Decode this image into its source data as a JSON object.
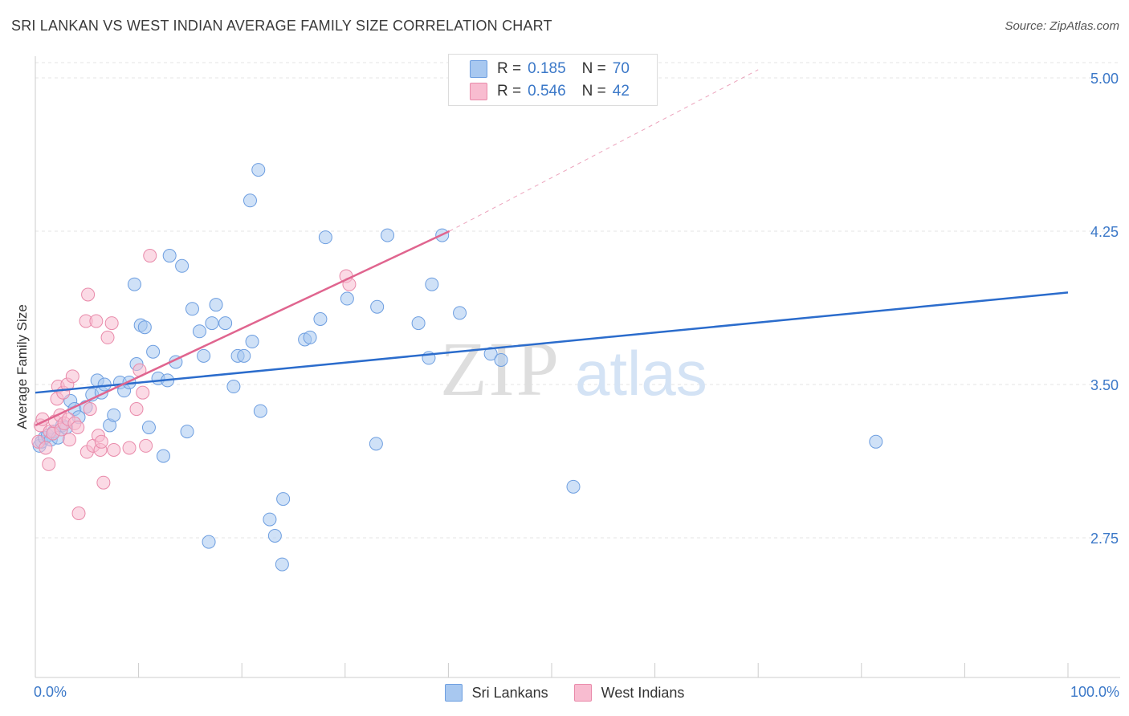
{
  "title": "SRI LANKAN VS WEST INDIAN AVERAGE FAMILY SIZE CORRELATION CHART",
  "source": "Source: ZipAtlas.com",
  "watermark": {
    "zip": "ZIP",
    "atlas": "atlas"
  },
  "colors": {
    "blue_fill": "#a8c8f0",
    "blue_stroke": "#6d9ee0",
    "blue_line": "#2b6ccc",
    "pink_fill": "#f8bcd0",
    "pink_stroke": "#e98aaa",
    "pink_line": "#e0658f",
    "grid": "#e6e6e6",
    "tick_label": "#3b78c8"
  },
  "legend": {
    "r_label": "R =",
    "n_label": "N =",
    "rows": [
      {
        "series": "Sri Lankans",
        "r": "0.185",
        "n": "70",
        "color": "#a8c8f0",
        "border": "#6d9ee0"
      },
      {
        "series": "West Indians",
        "r": "0.546",
        "n": "42",
        "color": "#f8bcd0",
        "border": "#e98aaa"
      }
    ]
  },
  "chart_data": {
    "type": "scatter",
    "title": "SRI LANKAN VS WEST INDIAN AVERAGE FAMILY SIZE CORRELATION CHART",
    "xlabel": "",
    "ylabel": "Average Family Size",
    "xlim": [
      0,
      100
    ],
    "ylim": [
      2.0,
      5.05
    ],
    "x_tick_labels": [
      "0.0%",
      "100.0%"
    ],
    "y_ticks": [
      2.75,
      3.5,
      4.25,
      5.0
    ],
    "y_tick_labels": [
      "2.75",
      "3.50",
      "4.25",
      "5.00"
    ],
    "grid": true,
    "legend_position": "top-center",
    "series": [
      {
        "name": "Sri Lankans",
        "color": "#a8c8f0",
        "trend": {
          "x": [
            0,
            100
          ],
          "y": [
            3.46,
            3.95
          ],
          "style": "solid"
        },
        "points": [
          [
            0.4,
            3.2
          ],
          [
            0.6,
            3.22
          ],
          [
            0.9,
            3.24
          ],
          [
            1.2,
            3.25
          ],
          [
            1.5,
            3.23
          ],
          [
            1.8,
            3.27
          ],
          [
            2.2,
            3.24
          ],
          [
            2.6,
            3.3
          ],
          [
            3.0,
            3.29
          ],
          [
            3.4,
            3.42
          ],
          [
            3.8,
            3.38
          ],
          [
            4.2,
            3.34
          ],
          [
            4.9,
            3.39
          ],
          [
            5.5,
            3.45
          ],
          [
            6.0,
            3.52
          ],
          [
            6.4,
            3.46
          ],
          [
            6.7,
            3.5
          ],
          [
            7.2,
            3.3
          ],
          [
            7.6,
            3.35
          ],
          [
            8.2,
            3.51
          ],
          [
            8.6,
            3.47
          ],
          [
            9.1,
            3.51
          ],
          [
            9.6,
            3.99
          ],
          [
            9.8,
            3.6
          ],
          [
            10.2,
            3.79
          ],
          [
            10.6,
            3.78
          ],
          [
            11.0,
            3.29
          ],
          [
            11.4,
            3.66
          ],
          [
            11.9,
            3.53
          ],
          [
            12.4,
            3.15
          ],
          [
            12.8,
            3.52
          ],
          [
            13.0,
            4.13
          ],
          [
            13.6,
            3.61
          ],
          [
            14.2,
            4.08
          ],
          [
            14.7,
            3.27
          ],
          [
            15.2,
            3.87
          ],
          [
            15.9,
            3.76
          ],
          [
            16.3,
            3.64
          ],
          [
            16.8,
            2.73
          ],
          [
            17.1,
            3.8
          ],
          [
            17.5,
            3.89
          ],
          [
            18.4,
            3.8
          ],
          [
            19.2,
            3.49
          ],
          [
            19.6,
            3.64
          ],
          [
            20.2,
            3.64
          ],
          [
            20.8,
            4.4
          ],
          [
            21.0,
            3.71
          ],
          [
            21.6,
            4.55
          ],
          [
            21.8,
            3.37
          ],
          [
            22.7,
            2.84
          ],
          [
            23.2,
            2.76
          ],
          [
            23.9,
            2.62
          ],
          [
            24.0,
            2.94
          ],
          [
            26.1,
            3.72
          ],
          [
            26.6,
            3.73
          ],
          [
            27.6,
            3.82
          ],
          [
            28.1,
            4.22
          ],
          [
            30.2,
            3.92
          ],
          [
            33.1,
            3.88
          ],
          [
            33.0,
            3.21
          ],
          [
            34.1,
            4.23
          ],
          [
            37.1,
            3.8
          ],
          [
            38.1,
            3.63
          ],
          [
            38.4,
            3.99
          ],
          [
            39.4,
            4.23
          ],
          [
            41.1,
            3.85
          ],
          [
            44.1,
            3.65
          ],
          [
            45.1,
            3.62
          ],
          [
            52.1,
            3.0
          ],
          [
            81.4,
            3.22
          ]
        ]
      },
      {
        "name": "West Indians",
        "color": "#f8bcd0",
        "trend": {
          "x": [
            0,
            40.1
          ],
          "y": [
            3.3,
            4.25
          ],
          "dashed_extension": {
            "x": [
              40.1,
              70
            ],
            "y": [
              4.25,
              5.04
            ]
          },
          "style": "solid"
        },
        "points": [
          [
            0.3,
            3.22
          ],
          [
            0.5,
            3.3
          ],
          [
            0.7,
            3.33
          ],
          [
            1.0,
            3.19
          ],
          [
            1.3,
            3.11
          ],
          [
            1.4,
            3.27
          ],
          [
            1.7,
            3.26
          ],
          [
            1.9,
            3.32
          ],
          [
            2.1,
            3.43
          ],
          [
            2.2,
            3.49
          ],
          [
            2.4,
            3.35
          ],
          [
            2.5,
            3.28
          ],
          [
            2.7,
            3.46
          ],
          [
            2.8,
            3.31
          ],
          [
            3.1,
            3.5
          ],
          [
            3.2,
            3.33
          ],
          [
            3.3,
            3.23
          ],
          [
            3.6,
            3.54
          ],
          [
            3.8,
            3.31
          ],
          [
            4.1,
            3.29
          ],
          [
            4.2,
            2.87
          ],
          [
            4.9,
            3.81
          ],
          [
            5.1,
            3.94
          ],
          [
            5.0,
            3.17
          ],
          [
            5.3,
            3.38
          ],
          [
            5.6,
            3.2
          ],
          [
            5.9,
            3.81
          ],
          [
            6.1,
            3.25
          ],
          [
            6.3,
            3.18
          ],
          [
            6.4,
            3.22
          ],
          [
            6.6,
            3.02
          ],
          [
            7.0,
            3.73
          ],
          [
            7.4,
            3.8
          ],
          [
            7.6,
            3.18
          ],
          [
            9.1,
            3.19
          ],
          [
            9.8,
            3.38
          ],
          [
            10.1,
            3.57
          ],
          [
            10.4,
            3.46
          ],
          [
            10.7,
            3.2
          ],
          [
            11.1,
            4.13
          ],
          [
            30.1,
            4.03
          ],
          [
            30.4,
            3.99
          ]
        ]
      }
    ]
  },
  "bottom_legend": {
    "items": [
      {
        "label": "Sri Lankans",
        "color": "#a8c8f0",
        "border": "#6d9ee0"
      },
      {
        "label": "West Indians",
        "color": "#f8bcd0",
        "border": "#e98aaa"
      }
    ]
  }
}
